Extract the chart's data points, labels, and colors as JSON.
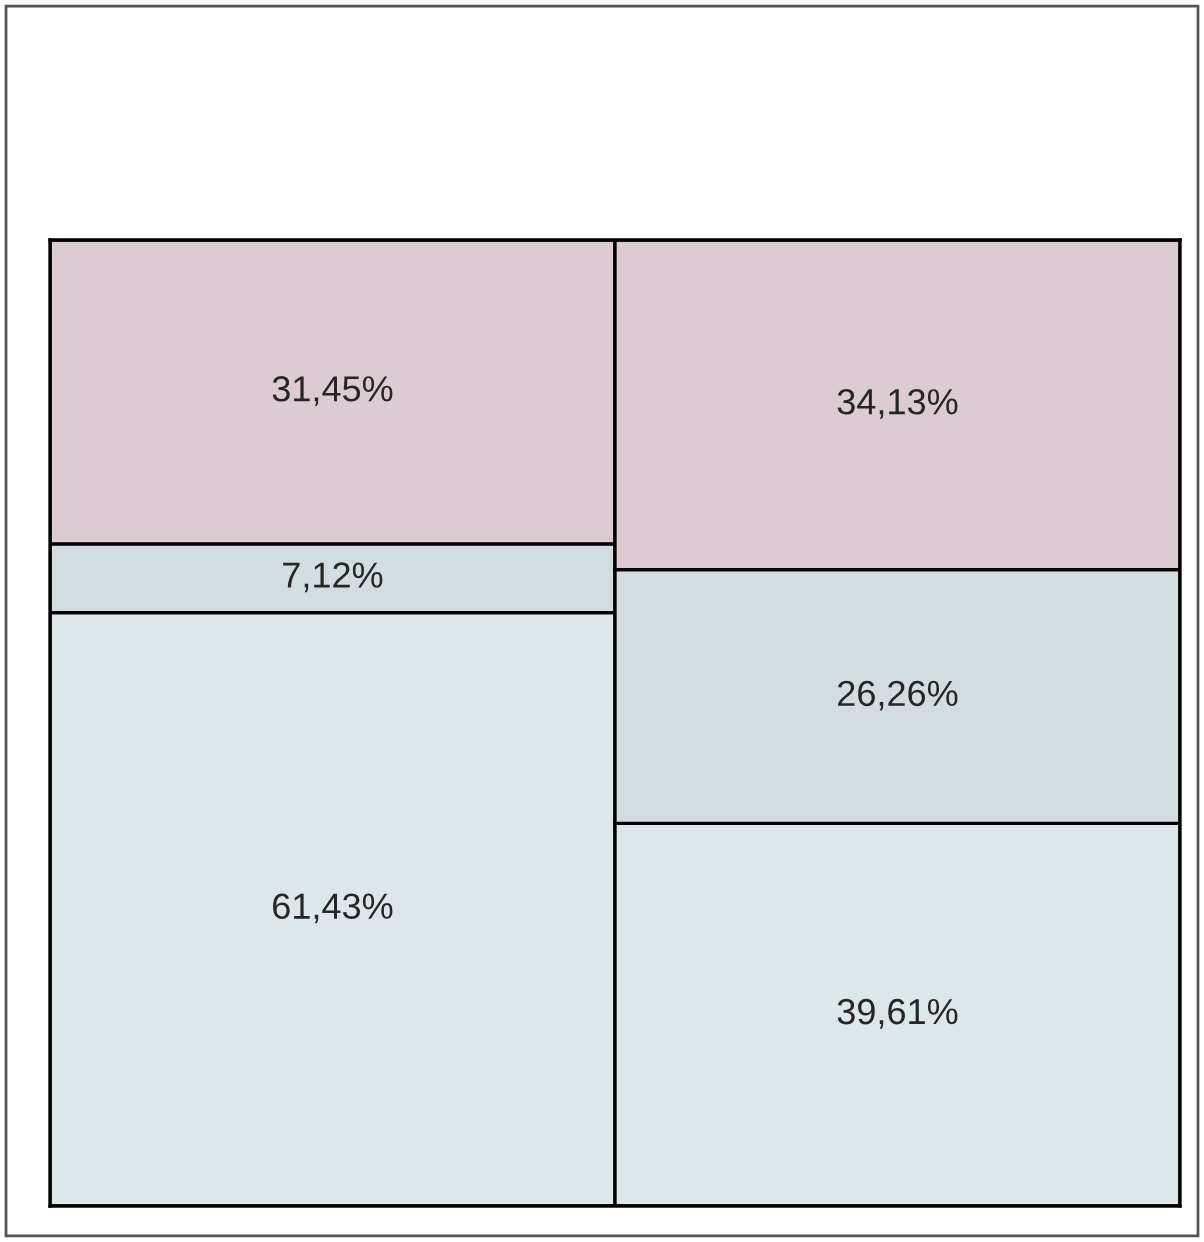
{
  "chart_data": {
    "type": "bar",
    "stacked": true,
    "categories": [
      null,
      null
    ],
    "series": [
      {
        "color": "#dde6ea",
        "values": [
          61.43,
          39.61
        ],
        "value_labels": [
          "61,43%",
          "39,61%"
        ]
      },
      {
        "color": "#d3dde1",
        "values": [
          7.12,
          26.26
        ],
        "value_labels": [
          "7,12%",
          "26,26%"
        ]
      },
      {
        "color": "#dccbd3",
        "values": [
          31.45,
          34.13
        ],
        "value_labels": [
          "31,45%",
          "34,13%"
        ]
      }
    ],
    "tick_labels": false
  }
}
